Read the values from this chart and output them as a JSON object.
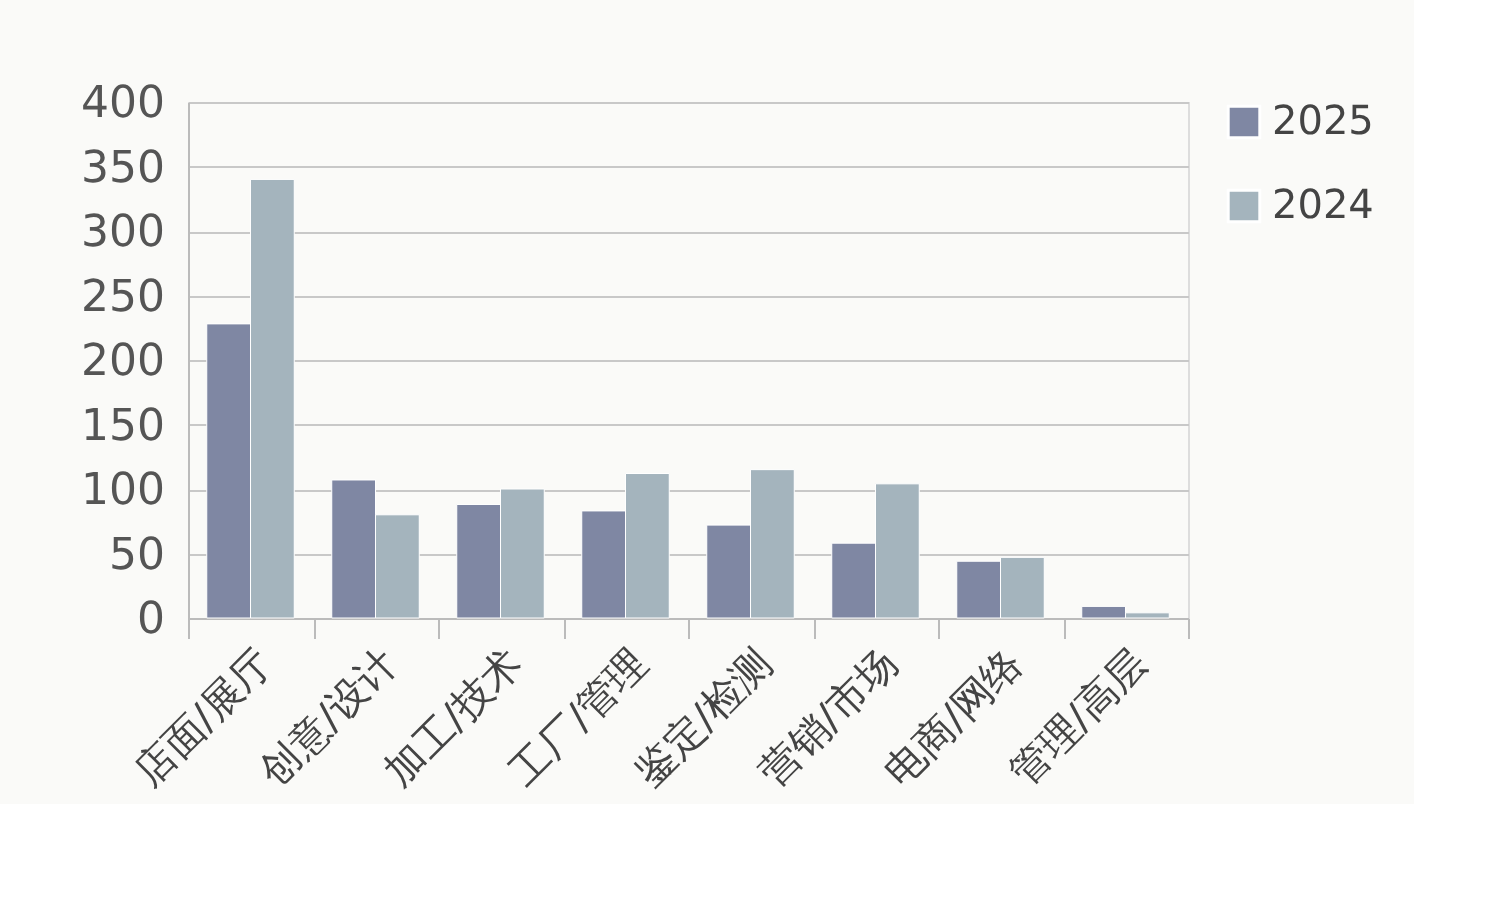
{
  "chart_data": {
    "type": "bar",
    "categories": [
      "店面/展厅",
      "创意/设计",
      "加工/技术",
      "工厂/管理",
      "鉴定/检测",
      "营销/市场",
      "电商/网络",
      "管理/高层"
    ],
    "series": [
      {
        "name": "2025",
        "color": "#7f87a3",
        "values": [
          228,
          107,
          88,
          83,
          72,
          58,
          44,
          9
        ]
      },
      {
        "name": "2024",
        "color": "#a4b4bd",
        "values": [
          340,
          80,
          100,
          112,
          115,
          104,
          47,
          4
        ]
      }
    ],
    "ylim": [
      0,
      400
    ],
    "yticks": [
      0,
      50,
      100,
      150,
      200,
      250,
      300,
      350,
      400
    ],
    "grid": "y",
    "legend": "right"
  }
}
